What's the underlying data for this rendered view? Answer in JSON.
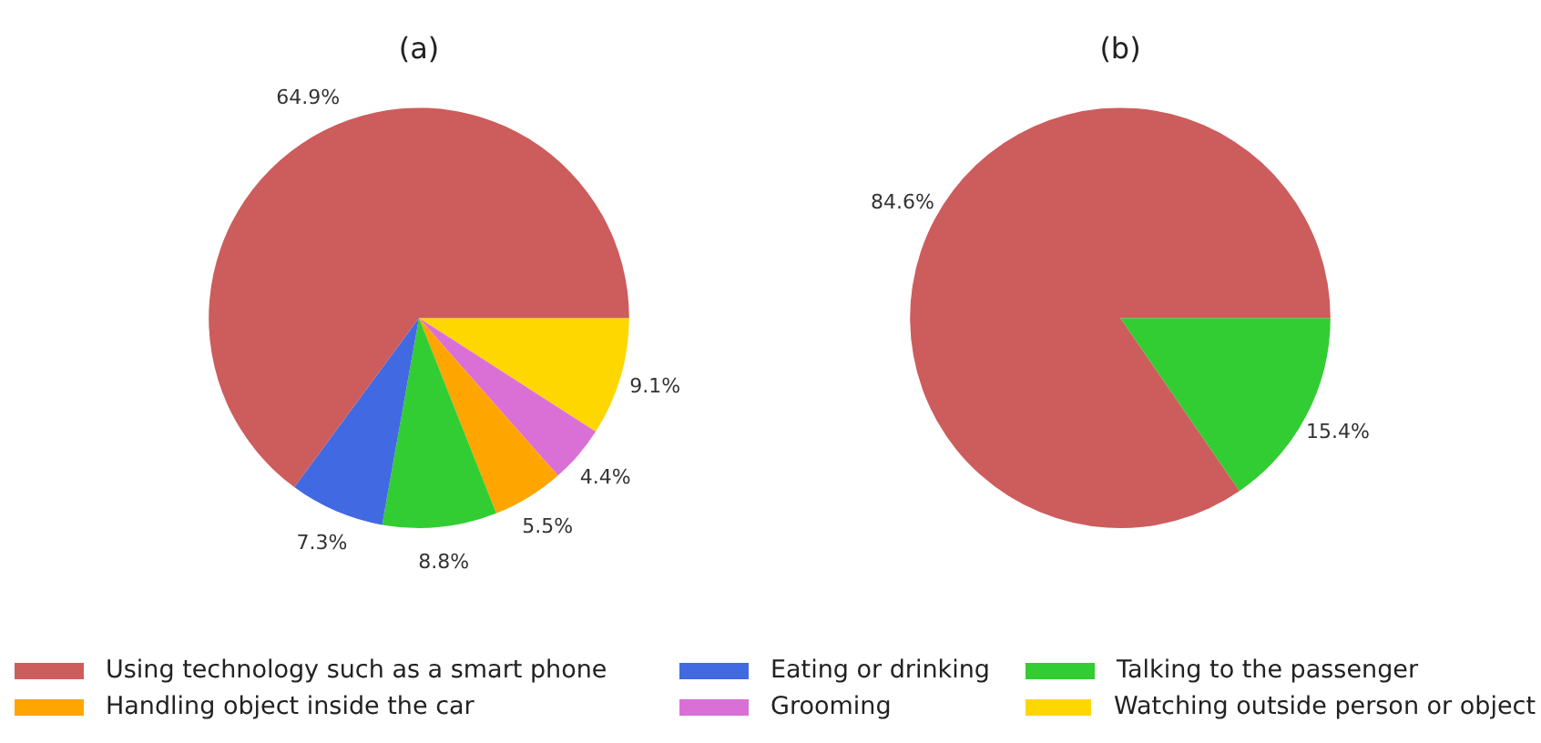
{
  "chart_data": [
    {
      "type": "pie",
      "title": "(a)",
      "categories": [
        "Using technology such as a smart phone",
        "Eating or drinking",
        "Talking to the passenger",
        "Handling object inside the car",
        "Grooming",
        "Watching outside person or object"
      ],
      "values": [
        64.9,
        7.3,
        8.8,
        5.5,
        4.4,
        9.1
      ],
      "colors": [
        "#cd5c5c",
        "#4169e1",
        "#32cd32",
        "#ffa500",
        "#da70d6",
        "#ffd700"
      ],
      "value_labels": [
        "64.9%",
        "7.3%",
        "8.8%",
        "5.5%",
        "4.4%",
        "9.1%"
      ],
      "legend": "bottom"
    },
    {
      "type": "pie",
      "title": "(b)",
      "categories": [
        null,
        null
      ],
      "values": [
        84.6,
        15.4
      ],
      "colors": [
        "#cd5c5c",
        "#32cd32"
      ],
      "value_labels": [
        "84.6%",
        "15.4%"
      ]
    }
  ]
}
